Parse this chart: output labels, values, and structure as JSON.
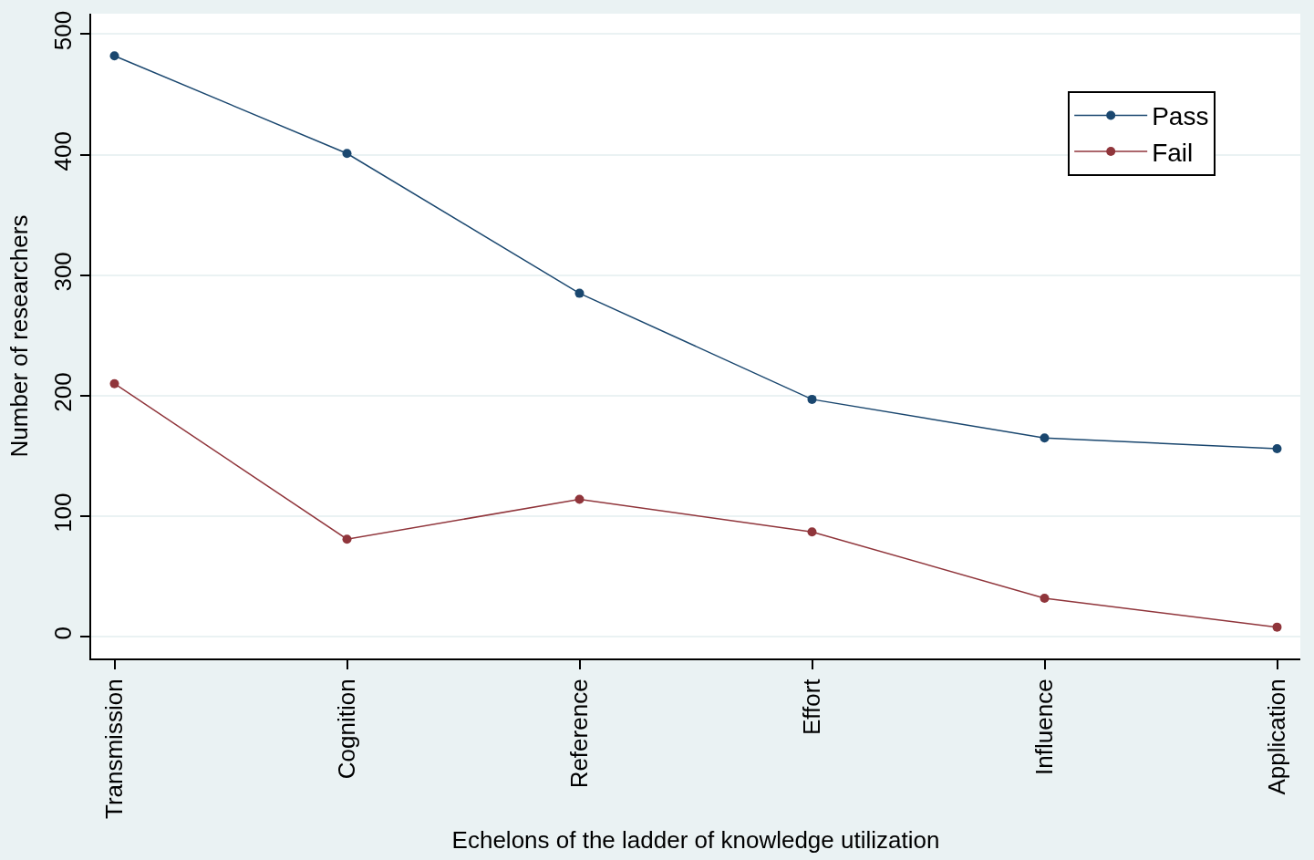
{
  "chart_data": {
    "type": "line",
    "xlabel": "Echelons of the ladder of knowledge utilization",
    "ylabel": "Number of researchers",
    "categories": [
      "Transmission",
      "Cognition",
      "Reference",
      "Effort",
      "Influence",
      "Application"
    ],
    "series": [
      {
        "name": "Pass",
        "color": "#1a476f",
        "values": [
          482,
          401,
          285,
          197,
          165,
          156
        ]
      },
      {
        "name": "Fail",
        "color": "#90353b",
        "values": [
          210,
          81,
          114,
          87,
          32,
          8
        ]
      }
    ],
    "ylim": [
      -18,
      517
    ],
    "yticks": [
      0,
      100,
      200,
      300,
      400,
      500
    ],
    "grid": "y",
    "legend": "top right",
    "marker": "circle",
    "line_style": "solid"
  }
}
